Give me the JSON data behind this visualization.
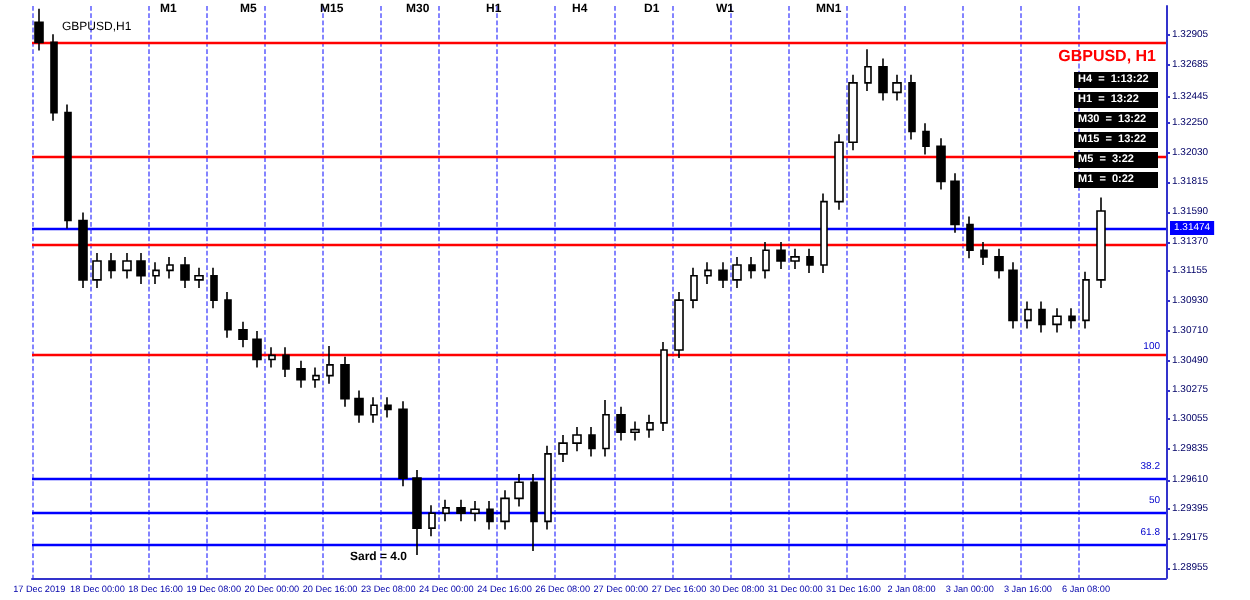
{
  "chart_data": {
    "type": "candlestick",
    "title": "GBPUSD,H1",
    "categories": [
      "17 Dec 2019",
      null,
      null,
      null,
      "18 Dec 00:00",
      null,
      null,
      null,
      "18 Dec 16:00",
      null,
      null,
      null,
      "19 Dec 08:00",
      null,
      null,
      null,
      "20 Dec 00:00",
      null,
      null,
      null,
      "20 Dec 16:00",
      null,
      null,
      null,
      "23 Dec 08:00",
      null,
      null,
      null,
      "24 Dec 00:00",
      null,
      null,
      null,
      "24 Dec 16:00",
      null,
      null,
      null,
      "26 Dec 08:00",
      null,
      null,
      null,
      "27 Dec 00:00",
      null,
      null,
      null,
      "27 Dec 16:00",
      null,
      null,
      null,
      "30 Dec 08:00",
      null,
      null,
      null,
      "31 Dec 00:00",
      null,
      null,
      null,
      "31 Dec 16:00",
      null,
      null,
      null,
      "2 Jan 08:00",
      null,
      null,
      null,
      "3 Jan 00:00",
      null,
      null,
      null,
      "3 Jan 16:00",
      null,
      null,
      null,
      "6 Jan 08:00",
      null,
      null,
      null,
      null,
      null
    ],
    "ohlc": [
      [
        1.33,
        1.331,
        1.3279,
        1.3285
      ],
      [
        1.3285,
        1.3291,
        1.3227,
        1.3233
      ],
      [
        1.3233,
        1.3239,
        1.3147,
        1.3153
      ],
      [
        1.3153,
        1.3159,
        1.3103,
        1.3109
      ],
      [
        1.3109,
        1.3129,
        1.3103,
        1.3123
      ],
      [
        1.3123,
        1.3129,
        1.311,
        1.3116
      ],
      [
        1.3116,
        1.3129,
        1.311,
        1.3123
      ],
      [
        1.3123,
        1.3129,
        1.3106,
        1.3112
      ],
      [
        1.3112,
        1.3122,
        1.3106,
        1.3116
      ],
      [
        1.3116,
        1.3126,
        1.311,
        1.312
      ],
      [
        1.312,
        1.3126,
        1.3103,
        1.3109
      ],
      [
        1.3109,
        1.3118,
        1.3103,
        1.3112
      ],
      [
        1.3112,
        1.3118,
        1.3088,
        1.3094
      ],
      [
        1.3094,
        1.31,
        1.3066,
        1.3072
      ],
      [
        1.3072,
        1.3078,
        1.3059,
        1.3065
      ],
      [
        1.3065,
        1.3071,
        1.3044,
        1.305
      ],
      [
        1.305,
        1.3059,
        1.3044,
        1.3053
      ],
      [
        1.3053,
        1.3059,
        1.3037,
        1.3043
      ],
      [
        1.3043,
        1.3049,
        1.3029,
        1.3035
      ],
      [
        1.3035,
        1.3044,
        1.3029,
        1.3038
      ],
      [
        1.3038,
        1.306,
        1.3032,
        1.3046
      ],
      [
        1.3046,
        1.3052,
        1.3015,
        1.3021
      ],
      [
        1.3021,
        1.3027,
        1.3003,
        1.3009
      ],
      [
        1.3009,
        1.3022,
        1.3003,
        1.3016
      ],
      [
        1.3016,
        1.3022,
        1.3007,
        1.3013
      ],
      [
        1.3013,
        1.3019,
        1.2956,
        1.2962
      ],
      [
        1.2962,
        1.2968,
        1.2905,
        1.2925
      ],
      [
        1.2925,
        1.2942,
        1.2919,
        1.2936
      ],
      [
        1.2936,
        1.2946,
        1.293,
        1.294
      ],
      [
        1.294,
        1.2946,
        1.293,
        1.2936
      ],
      [
        1.2936,
        1.2945,
        1.293,
        1.2939
      ],
      [
        1.2939,
        1.2945,
        1.2924,
        1.293
      ],
      [
        1.293,
        1.2953,
        1.2924,
        1.2947
      ],
      [
        1.2947,
        1.2965,
        1.2941,
        1.2959
      ],
      [
        1.2959,
        1.2965,
        1.2908,
        1.293
      ],
      [
        1.293,
        1.2986,
        1.2924,
        1.298
      ],
      [
        1.298,
        1.2994,
        1.2974,
        1.2988
      ],
      [
        1.2988,
        1.3,
        1.2982,
        1.2994
      ],
      [
        1.2994,
        1.3,
        1.2978,
        1.2984
      ],
      [
        1.2984,
        1.302,
        1.2978,
        1.3009
      ],
      [
        1.3009,
        1.3015,
        1.299,
        1.2996
      ],
      [
        1.2996,
        1.3004,
        1.299,
        1.2998
      ],
      [
        1.2998,
        1.3009,
        1.2992,
        1.3003
      ],
      [
        1.3003,
        1.3063,
        1.2997,
        1.3057
      ],
      [
        1.3057,
        1.31,
        1.3051,
        1.3094
      ],
      [
        1.3094,
        1.3118,
        1.3088,
        1.3112
      ],
      [
        1.3112,
        1.3122,
        1.3106,
        1.3116
      ],
      [
        1.3116,
        1.3122,
        1.3103,
        1.3109
      ],
      [
        1.3109,
        1.3126,
        1.3103,
        1.312
      ],
      [
        1.312,
        1.3126,
        1.311,
        1.3116
      ],
      [
        1.3116,
        1.3137,
        1.311,
        1.3131
      ],
      [
        1.3131,
        1.3137,
        1.3117,
        1.3123
      ],
      [
        1.3123,
        1.3132,
        1.3117,
        1.3126
      ],
      [
        1.3126,
        1.3132,
        1.3114,
        1.312
      ],
      [
        1.312,
        1.3173,
        1.3114,
        1.3167
      ],
      [
        1.3167,
        1.3217,
        1.3161,
        1.3211
      ],
      [
        1.3211,
        1.3261,
        1.3205,
        1.3255
      ],
      [
        1.3255,
        1.328,
        1.3249,
        1.3267
      ],
      [
        1.3267,
        1.3273,
        1.3242,
        1.3248
      ],
      [
        1.3248,
        1.3261,
        1.3242,
        1.3255
      ],
      [
        1.3255,
        1.3261,
        1.3213,
        1.3219
      ],
      [
        1.3219,
        1.3225,
        1.3202,
        1.3208
      ],
      [
        1.3208,
        1.3214,
        1.3176,
        1.3182
      ],
      [
        1.3182,
        1.3188,
        1.3144,
        1.315
      ],
      [
        1.315,
        1.3156,
        1.3125,
        1.3131
      ],
      [
        1.3131,
        1.3137,
        1.312,
        1.3126
      ],
      [
        1.3126,
        1.3132,
        1.311,
        1.3116
      ],
      [
        1.3116,
        1.3122,
        1.3073,
        1.3079
      ],
      [
        1.3079,
        1.3093,
        1.3073,
        1.3087
      ],
      [
        1.3087,
        1.3093,
        1.307,
        1.3076
      ],
      [
        1.3076,
        1.3088,
        1.307,
        1.3082
      ],
      [
        1.3082,
        1.3088,
        1.3073,
        1.3079
      ],
      [
        1.3079,
        1.3115,
        1.3073,
        1.3109
      ],
      [
        1.3109,
        1.317,
        1.3103,
        1.316
      ],
      null,
      null,
      null,
      null
    ],
    "ylim": [
      1.2888,
      1.3312
    ],
    "yticks": [
      {
        "value": 1.28955,
        "label": "1.28955"
      },
      {
        "value": 1.29175,
        "label": "1.29175"
      },
      {
        "value": 1.29395,
        "label": "1.29395"
      },
      {
        "value": 1.2961,
        "label": "1.29610"
      },
      {
        "value": 1.29835,
        "label": "1.29835"
      },
      {
        "value": 1.30055,
        "label": "1.30055"
      },
      {
        "value": 1.30275,
        "label": "1.30275"
      },
      {
        "value": 1.3049,
        "label": "1.30490"
      },
      {
        "value": 1.3071,
        "label": "1.30710"
      },
      {
        "value": 1.3093,
        "label": "1.30930"
      },
      {
        "value": 1.31155,
        "label": "1.31155"
      },
      {
        "value": 1.3137,
        "label": "1.31370"
      },
      {
        "value": 1.3159,
        "label": "1.31590"
      },
      {
        "value": 1.31815,
        "label": "1.31815"
      },
      {
        "value": 1.3203,
        "label": "1.32030"
      },
      {
        "value": 1.3225,
        "label": "1.32250"
      },
      {
        "value": 1.32445,
        "label": "1.32445"
      },
      {
        "value": 1.32685,
        "label": "1.32685"
      },
      {
        "value": 1.32905,
        "label": "1.32905"
      }
    ],
    "grid": "x",
    "ref_lines": [
      {
        "axis": "y",
        "value": 1.3285,
        "color": "#ff0000"
      },
      {
        "axis": "y",
        "value": 1.3201,
        "color": "#ff0000"
      },
      {
        "axis": "y",
        "value": 1.3135,
        "color": "#ff0000"
      },
      {
        "axis": "y",
        "value": 1.3053,
        "color": "#ff0000"
      },
      {
        "axis": "y",
        "value": 1.31474,
        "color": "#0000ff",
        "label": "1.31474"
      },
      {
        "axis": "y",
        "value": 1.2962,
        "color": "#0000ff"
      },
      {
        "axis": "y",
        "value": 1.2937,
        "color": "#0000ff"
      },
      {
        "axis": "y",
        "value": 1.2913,
        "color": "#0000ff"
      }
    ],
    "annotations": [
      "GBPUSD, H1",
      "H4  =  1:13:22",
      "H1  =  13:22",
      "M30  =  13:22",
      "M15  =  13:22",
      "M5  =  3:22",
      "M1  =  0:22",
      "Sard = 4.0",
      "M1",
      "M5",
      "M15",
      "M30",
      "H1",
      "H4",
      "D1",
      "W1",
      "MN1",
      "100",
      "38.2",
      "50",
      "61.8"
    ]
  }
}
